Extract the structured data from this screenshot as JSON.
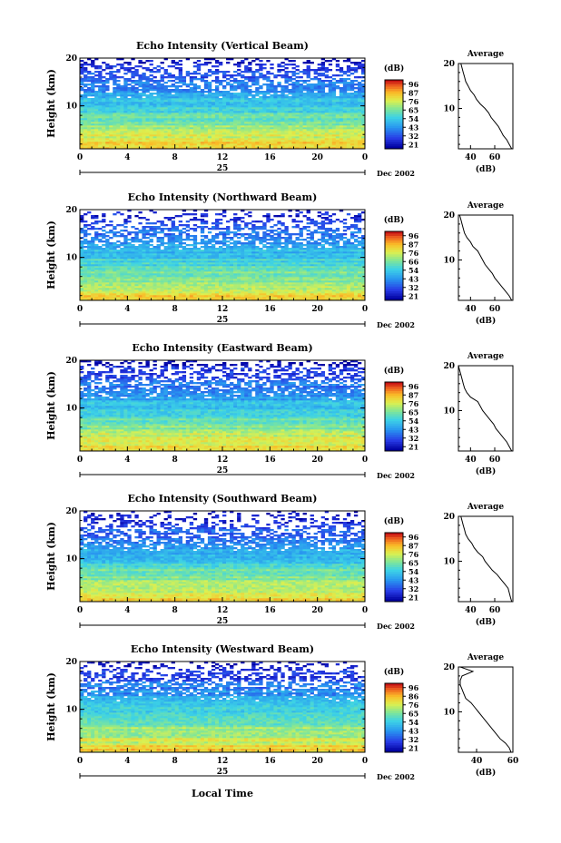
{
  "figure_footer": "Local Time",
  "chart_data": [
    {
      "type": "heatmap",
      "title": "Echo Intensity (Vertical Beam)",
      "ylabel": "Height (km)",
      "xlabel": "Local Time",
      "x_ticks": [
        "0",
        "4",
        "8",
        "12",
        "16",
        "20",
        "0"
      ],
      "y_ticks": [
        "10",
        "20"
      ],
      "x_range": [
        0,
        24
      ],
      "y_range": [
        1,
        20
      ],
      "date_day": "25",
      "date_month_year": "Dec 2002",
      "colorbar": {
        "unit": "(dB)",
        "ticks": [
          "96",
          "87",
          "76",
          "65",
          "54",
          "43",
          "32",
          "21"
        ],
        "range": [
          21,
          96
        ]
      },
      "profile": {
        "title": "Average",
        "xlabel": "(dB)",
        "x_ticks": [
          "40",
          "60"
        ],
        "y_ticks": [
          "10",
          "20"
        ],
        "x_range": [
          30,
          75
        ],
        "points": [
          [
            74,
            1
          ],
          [
            72,
            2
          ],
          [
            70,
            3
          ],
          [
            67,
            4
          ],
          [
            65,
            5
          ],
          [
            63,
            6
          ],
          [
            60,
            7
          ],
          [
            57,
            8
          ],
          [
            55,
            9
          ],
          [
            52,
            10
          ],
          [
            48,
            11
          ],
          [
            45,
            12
          ],
          [
            43,
            13
          ],
          [
            40,
            14
          ],
          [
            38,
            15
          ],
          [
            36,
            16
          ],
          [
            35,
            17
          ],
          [
            34,
            18
          ],
          [
            33,
            19
          ],
          [
            32,
            20
          ]
        ]
      }
    },
    {
      "type": "heatmap",
      "title": "Echo Intensity (Northward Beam)",
      "ylabel": "Height (km)",
      "xlabel": "Local Time",
      "x_ticks": [
        "0",
        "4",
        "8",
        "12",
        "16",
        "20",
        "0"
      ],
      "y_ticks": [
        "10",
        "20"
      ],
      "x_range": [
        0,
        24
      ],
      "y_range": [
        1,
        20
      ],
      "date_day": "25",
      "date_month_year": "Dec 2002",
      "colorbar": {
        "unit": "(dB)",
        "ticks": [
          "96",
          "87",
          "76",
          "66",
          "54",
          "43",
          "32",
          "21"
        ],
        "range": [
          21,
          96
        ]
      },
      "profile": {
        "title": "Average",
        "xlabel": "(dB)",
        "x_ticks": [
          "40",
          "60"
        ],
        "y_ticks": [
          "10",
          "20"
        ],
        "x_range": [
          30,
          75
        ],
        "points": [
          [
            74,
            1
          ],
          [
            72,
            2
          ],
          [
            69,
            3
          ],
          [
            66,
            4
          ],
          [
            63,
            5
          ],
          [
            60,
            6
          ],
          [
            58,
            7
          ],
          [
            55,
            8
          ],
          [
            52,
            9
          ],
          [
            50,
            10
          ],
          [
            48,
            11
          ],
          [
            46,
            12
          ],
          [
            42,
            13
          ],
          [
            40,
            14
          ],
          [
            37,
            15
          ],
          [
            35,
            16
          ],
          [
            34,
            17
          ],
          [
            33,
            18
          ],
          [
            32,
            19
          ],
          [
            31,
            20
          ]
        ]
      }
    },
    {
      "type": "heatmap",
      "title": "Echo Intensity (Eastward Beam)",
      "ylabel": "Height (km)",
      "xlabel": "Local Time",
      "x_ticks": [
        "0",
        "4",
        "8",
        "12",
        "16",
        "20",
        "0"
      ],
      "y_ticks": [
        "10",
        "20"
      ],
      "x_range": [
        0,
        24
      ],
      "y_range": [
        1,
        20
      ],
      "date_day": "25",
      "date_month_year": "Dec 2002",
      "colorbar": {
        "unit": "(dB)",
        "ticks": [
          "96",
          "87",
          "76",
          "65",
          "54",
          "43",
          "32",
          "21"
        ],
        "range": [
          21,
          96
        ]
      },
      "profile": {
        "title": "Average",
        "xlabel": "(dB)",
        "x_ticks": [
          "40",
          "60"
        ],
        "y_ticks": [
          "10",
          "20"
        ],
        "x_range": [
          30,
          75
        ],
        "points": [
          [
            74,
            1
          ],
          [
            72,
            2
          ],
          [
            70,
            3
          ],
          [
            67,
            4
          ],
          [
            64,
            5
          ],
          [
            61,
            6
          ],
          [
            59,
            7
          ],
          [
            56,
            8
          ],
          [
            53,
            9
          ],
          [
            50,
            10
          ],
          [
            48,
            11
          ],
          [
            46,
            12
          ],
          [
            40,
            13
          ],
          [
            37,
            14
          ],
          [
            35,
            15
          ],
          [
            34,
            16
          ],
          [
            33,
            17
          ],
          [
            32,
            18
          ],
          [
            31,
            19
          ],
          [
            30,
            20
          ]
        ]
      }
    },
    {
      "type": "heatmap",
      "title": "Echo Intensity (Southward Beam)",
      "ylabel": "Height (km)",
      "xlabel": "Local Time",
      "x_ticks": [
        "0",
        "4",
        "8",
        "12",
        "16",
        "20",
        "0"
      ],
      "y_ticks": [
        "10",
        "20"
      ],
      "x_range": [
        0,
        24
      ],
      "y_range": [
        1,
        20
      ],
      "date_day": "25",
      "date_month_year": "Dec 2002",
      "colorbar": {
        "unit": "(dB)",
        "ticks": [
          "96",
          "87",
          "76",
          "65",
          "54",
          "43",
          "32",
          "21"
        ],
        "range": [
          21,
          96
        ]
      },
      "profile": {
        "title": "Average",
        "xlabel": "(dB)",
        "x_ticks": [
          "40",
          "60"
        ],
        "y_ticks": [
          "10",
          "20"
        ],
        "x_range": [
          30,
          75
        ],
        "points": [
          [
            74,
            1
          ],
          [
            73,
            2
          ],
          [
            72,
            3
          ],
          [
            71,
            4
          ],
          [
            68,
            5
          ],
          [
            65,
            6
          ],
          [
            62,
            7
          ],
          [
            58,
            8
          ],
          [
            55,
            9
          ],
          [
            52,
            10
          ],
          [
            50,
            11
          ],
          [
            46,
            12
          ],
          [
            43,
            13
          ],
          [
            41,
            14
          ],
          [
            38,
            15
          ],
          [
            36,
            16
          ],
          [
            35,
            17
          ],
          [
            34,
            18
          ],
          [
            33,
            19
          ],
          [
            32,
            20
          ]
        ]
      }
    },
    {
      "type": "heatmap",
      "title": "Echo Intensity (Westward Beam)",
      "ylabel": "Height (km)",
      "xlabel": "Local Time",
      "x_ticks": [
        "0",
        "4",
        "8",
        "12",
        "16",
        "20",
        "0"
      ],
      "y_ticks": [
        "10",
        "20"
      ],
      "x_range": [
        0,
        24
      ],
      "y_range": [
        1,
        20
      ],
      "date_day": "25",
      "date_month_year": "Dec 2002",
      "colorbar": {
        "unit": "(dB)",
        "ticks": [
          "96",
          "86",
          "76",
          "65",
          "54",
          "43",
          "32",
          "21"
        ],
        "range": [
          21,
          96
        ]
      },
      "profile": {
        "title": "Average",
        "xlabel": "(dB)",
        "x_ticks": [
          "40",
          "60"
        ],
        "y_ticks": [
          "10",
          "20"
        ],
        "x_range": [
          30,
          60
        ],
        "points": [
          [
            59,
            1
          ],
          [
            58,
            2
          ],
          [
            56,
            3
          ],
          [
            53,
            4
          ],
          [
            51,
            5
          ],
          [
            49,
            6
          ],
          [
            47,
            7
          ],
          [
            45,
            8
          ],
          [
            43,
            9
          ],
          [
            41,
            10
          ],
          [
            39,
            11
          ],
          [
            37,
            12
          ],
          [
            34,
            13
          ],
          [
            33,
            14
          ],
          [
            32,
            15
          ],
          [
            31,
            16
          ],
          [
            31,
            17
          ],
          [
            32,
            18
          ],
          [
            38,
            19
          ],
          [
            31,
            20
          ]
        ]
      }
    }
  ]
}
